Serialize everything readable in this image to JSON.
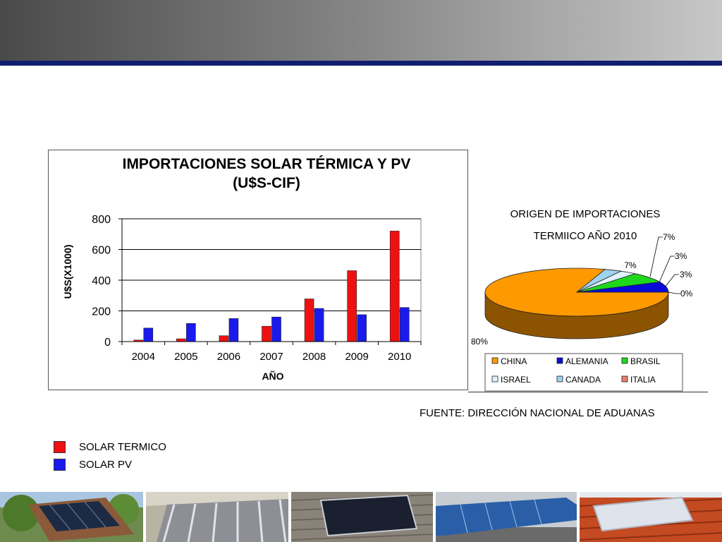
{
  "colors": {
    "header_gradient_start": "#4a4a4a",
    "header_gradient_end": "#c8c8c8",
    "header_line": "#0f1e6e",
    "solar_termico": "#ee1111",
    "solar_pv": "#1a1aee"
  },
  "chart_data": [
    {
      "type": "bar",
      "title": "IMPORTACIONES SOLAR TÉRMICA Y PV",
      "subtitle": "(U$S-CIF)",
      "xlabel": "AÑO",
      "ylabel": "U$S(X1000)",
      "categories": [
        "2004",
        "2005",
        "2006",
        "2007",
        "2008",
        "2009",
        "2010"
      ],
      "series": [
        {
          "name": "SOLAR TERMICO",
          "color": "#ee1111",
          "values": [
            10,
            18,
            38,
            100,
            278,
            462,
            720
          ]
        },
        {
          "name": "SOLAR PV",
          "color": "#1a1aee",
          "values": [
            88,
            118,
            150,
            160,
            216,
            175,
            222
          ]
        }
      ],
      "ylim": [
        0,
        800
      ],
      "yticks": [
        "0",
        "200",
        "400",
        "600",
        "800"
      ],
      "grid": true
    },
    {
      "type": "pie",
      "title_line1": "ORIGEN DE IMPORTACIONES",
      "title_line2": "TERMIICO AÑO 2010",
      "slices": [
        {
          "name": "CHINA",
          "value": 80,
          "label": "80%",
          "color": "#ff9900"
        },
        {
          "name": "ALEMANIA",
          "value": 7,
          "label": "7%",
          "color": "#0a0ad8"
        },
        {
          "name": "BRASIL",
          "value": 7,
          "label": "7%",
          "color": "#1ed81e"
        },
        {
          "name": "ISRAEL",
          "value": 3,
          "label": "3%",
          "color": "#dff2ff"
        },
        {
          "name": "CANADA",
          "value": 3,
          "label": "3%",
          "color": "#9fd2f0"
        },
        {
          "name": "ITALIA",
          "value": 0,
          "label": "0%",
          "color": "#e8806a"
        }
      ],
      "legend": [
        "CHINA",
        "ALEMANIA",
        "BRASIL",
        "ISRAEL",
        "CANADA",
        "ITALIA"
      ],
      "legend_position": "bottom"
    }
  ],
  "source": "FUENTE: DIRECCIÓN NACIONAL DE ADUANAS",
  "side_legend": [
    {
      "label": "SOLAR TERMICO",
      "color": "#ee1111"
    },
    {
      "label": "SOLAR PV",
      "color": "#1a1aee"
    }
  ]
}
